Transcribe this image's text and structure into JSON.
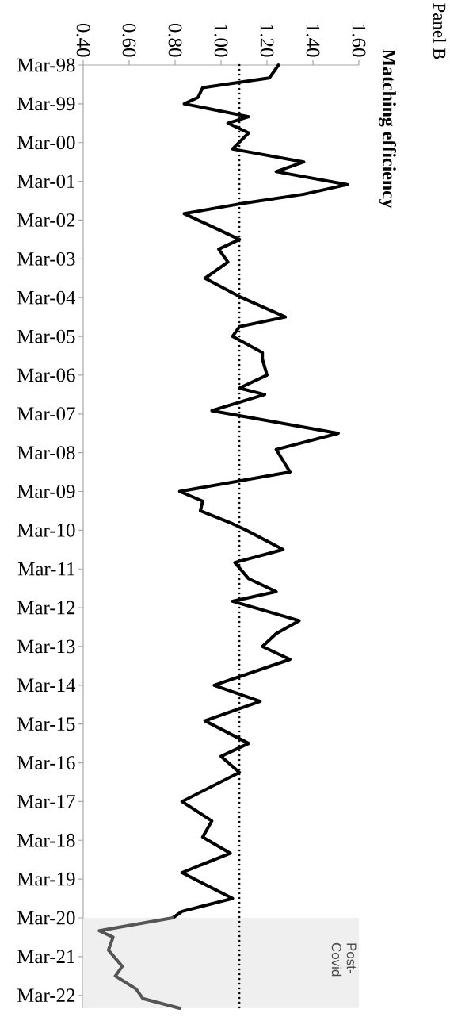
{
  "chart_data": {
    "type": "line",
    "title": "Panel B",
    "subtitle": "Matching efficiency",
    "orientation": "horizontal",
    "series": [
      {
        "color": "#000000",
        "line_style": "solid",
        "x": [
          "1998-03",
          "1998-07",
          "1998-10",
          "1999-01",
          "1999-03",
          "1999-07",
          "1999-09",
          "1999-12",
          "2000-05",
          "2000-09",
          "2000-12",
          "2001-04",
          "2001-07",
          "2001-10",
          "2002-01",
          "2002-06",
          "2002-09",
          "2002-12",
          "2003-04",
          "2003-09",
          "2004-03",
          "2004-09",
          "2004-12",
          "2005-03",
          "2005-08",
          "2005-10",
          "2006-03",
          "2006-07",
          "2006-09",
          "2007-02",
          "2007-09",
          "2008-02",
          "2008-09",
          "2009-03",
          "2009-06",
          "2009-09",
          "2010-01",
          "2010-03",
          "2010-09",
          "2011-01",
          "2011-06",
          "2011-10",
          "2012-01",
          "2012-07",
          "2012-11",
          "2013-03",
          "2013-07",
          "2014-03",
          "2014-08",
          "2015-02",
          "2015-09",
          "2016-01",
          "2016-06",
          "2017-03",
          "2017-09",
          "2018-02",
          "2018-07",
          "2019-01",
          "2019-09",
          "2020-01",
          "2020-03"
        ],
        "values": [
          1.25,
          1.21,
          0.92,
          0.9,
          0.84,
          1.12,
          1.03,
          1.12,
          1.05,
          1.36,
          1.24,
          1.55,
          1.36,
          1.08,
          0.84,
          0.99,
          1.08,
          0.99,
          1.03,
          0.93,
          1.09,
          1.28,
          1.08,
          1.05,
          1.18,
          1.18,
          1.2,
          1.08,
          1.19,
          0.96,
          1.51,
          1.24,
          1.3,
          0.82,
          0.92,
          0.91,
          1.05,
          1.11,
          1.27,
          1.06,
          1.12,
          1.24,
          1.05,
          1.34,
          1.24,
          1.18,
          1.3,
          0.97,
          1.17,
          0.93,
          1.12,
          1.0,
          1.08,
          0.83,
          0.96,
          0.92,
          1.04,
          0.83,
          1.05,
          0.83,
          0.79
        ]
      },
      {
        "color": "#555555",
        "line_style": "solid",
        "x": [
          "2020-03",
          "2020-07",
          "2020-09",
          "2021-01",
          "2021-06",
          "2021-09",
          "2022-01",
          "2022-04",
          "2022-07"
        ],
        "values": [
          0.79,
          0.47,
          0.53,
          0.51,
          0.57,
          0.54,
          0.63,
          0.66,
          0.82
        ]
      }
    ],
    "xlim": [
      0.4,
      1.6
    ],
    "ylim": [
      "2022-07",
      "1998-03"
    ],
    "xticks": [
      {
        "value": 0.4,
        "label": "0.40"
      },
      {
        "value": 0.6,
        "label": "0.60"
      },
      {
        "value": 0.8,
        "label": "0.80"
      },
      {
        "value": 1.0,
        "label": "1.00"
      },
      {
        "value": 1.2,
        "label": "1.20"
      },
      {
        "value": 1.4,
        "label": "1.40"
      },
      {
        "value": 1.6,
        "label": "1.60"
      }
    ],
    "yticks": [
      {
        "value": "1998-03",
        "label": "Mar-98"
      },
      {
        "value": "1999-03",
        "label": "Mar-99"
      },
      {
        "value": "2000-03",
        "label": "Mar-00"
      },
      {
        "value": "2001-03",
        "label": "Mar-01"
      },
      {
        "value": "2002-03",
        "label": "Mar-02"
      },
      {
        "value": "2003-03",
        "label": "Mar-03"
      },
      {
        "value": "2004-03",
        "label": "Mar-04"
      },
      {
        "value": "2005-03",
        "label": "Mar-05"
      },
      {
        "value": "2006-03",
        "label": "Mar-06"
      },
      {
        "value": "2007-03",
        "label": "Mar-07"
      },
      {
        "value": "2008-03",
        "label": "Mar-08"
      },
      {
        "value": "2009-03",
        "label": "Mar-09"
      },
      {
        "value": "2010-03",
        "label": "Mar-10"
      },
      {
        "value": "2011-03",
        "label": "Mar-11"
      },
      {
        "value": "2012-03",
        "label": "Mar-12"
      },
      {
        "value": "2013-03",
        "label": "Mar-13"
      },
      {
        "value": "2014-03",
        "label": "Mar-14"
      },
      {
        "value": "2015-03",
        "label": "Mar-15"
      },
      {
        "value": "2016-03",
        "label": "Mar-16"
      },
      {
        "value": "2017-03",
        "label": "Mar-17"
      },
      {
        "value": "2018-03",
        "label": "Mar-18"
      },
      {
        "value": "2019-03",
        "label": "Mar-19"
      },
      {
        "value": "2020-03",
        "label": "Mar-20"
      },
      {
        "value": "2021-03",
        "label": "Mar-21"
      },
      {
        "value": "2022-03",
        "label": "Mar-22"
      }
    ],
    "ref_lines": [
      {
        "axis": "x",
        "value": 1.08,
        "color": "#000000",
        "line_style": "dotted"
      }
    ],
    "bands": [
      {
        "axis": "y",
        "from": "2020-03",
        "to": "2022-07",
        "label": "Post-Covid",
        "color": "#efefef"
      }
    ],
    "grid": false
  }
}
